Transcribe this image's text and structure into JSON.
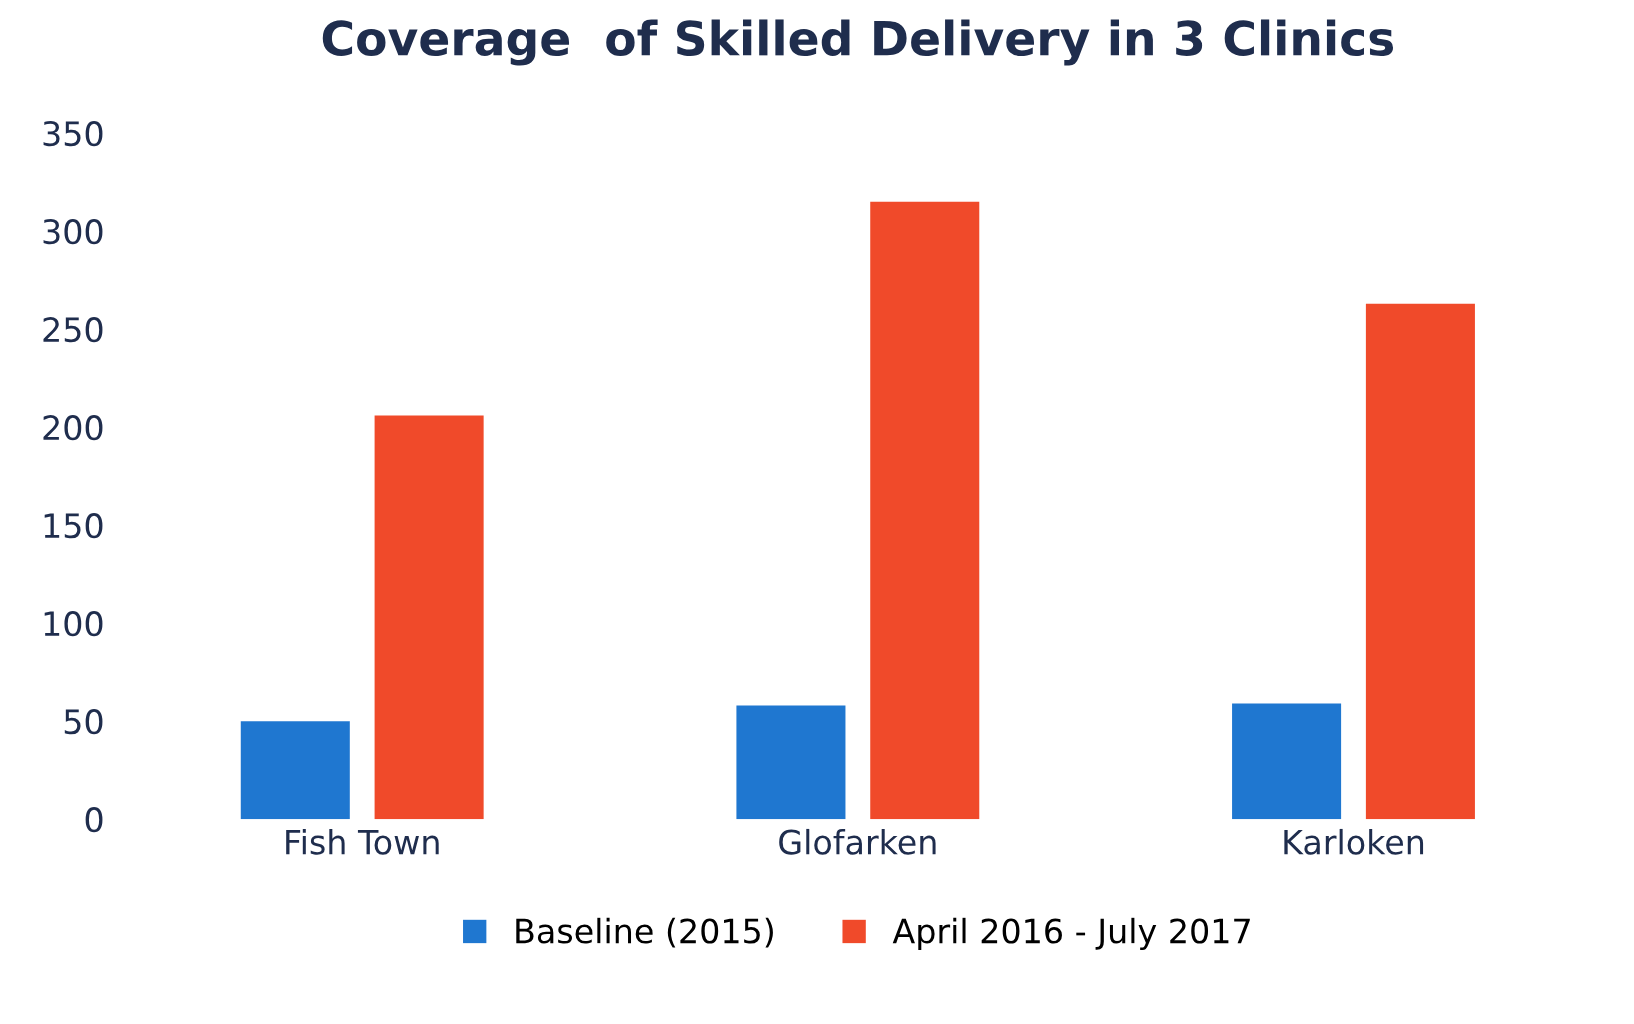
{
  "chart_data": {
    "type": "bar",
    "title": "Coverage  of Skilled Delivery in 3 Clinics",
    "categories": [
      "Fish Town",
      "Glofarken",
      "Karloken"
    ],
    "series": [
      {
        "name": "Baseline (2015)",
        "color": "#1f77d0",
        "values": [
          50,
          58,
          59
        ]
      },
      {
        "name": "April 2016 - July 2017",
        "color": "#f04a2a",
        "values": [
          206,
          315,
          263
        ]
      }
    ],
    "ylim": [
      0,
      350
    ],
    "yticks": [
      0,
      50,
      100,
      150,
      200,
      250,
      300,
      350
    ],
    "grid": false,
    "legend": "bottom"
  }
}
